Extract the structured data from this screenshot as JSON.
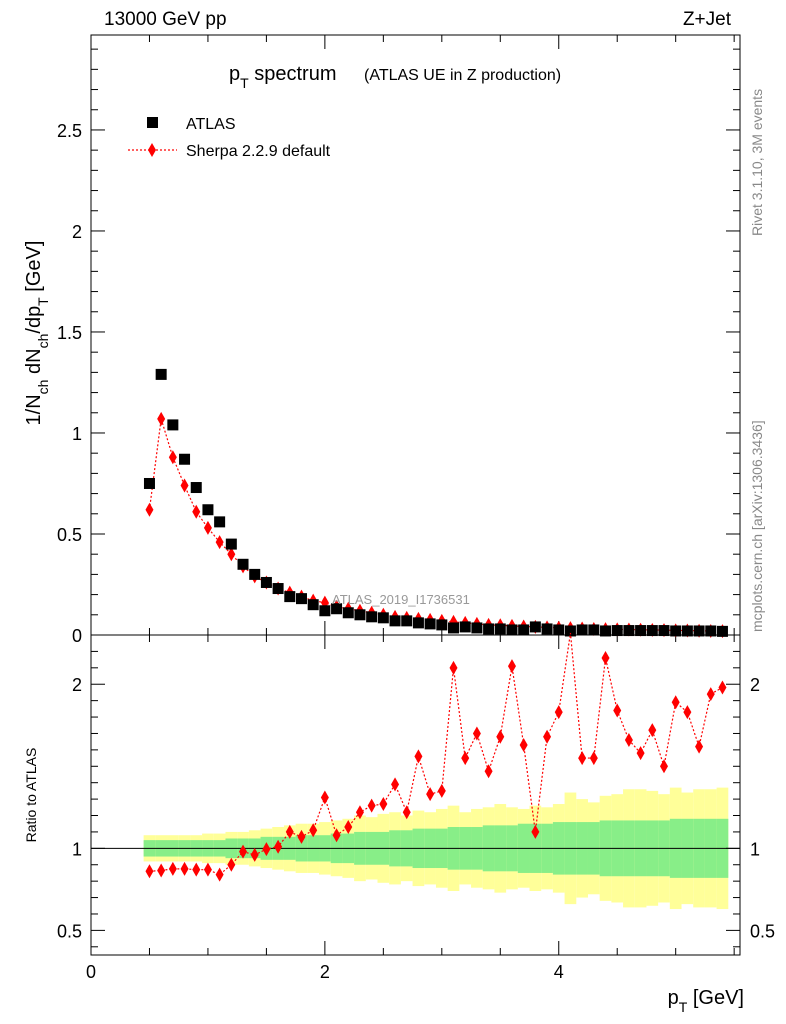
{
  "header": {
    "energy_label": "13000 GeV pp",
    "process_label": "Z+Jet"
  },
  "side_labels": {
    "rivet": "Rivet 3.1.10,  3M events",
    "mcplots": "mcplots.cern.ch [arXiv:1306.3436]"
  },
  "colors": {
    "atlas": "#000000",
    "sherpa": "#ff0000",
    "band_inner": "#88ee88",
    "band_outer": "#ffff99"
  },
  "chart_data": {
    "type": "scatter",
    "title": "p_T spectrum",
    "subtitle": "(ATLAS UE in Z production)",
    "watermark": "ATLAS_2019_I1736531",
    "xlabel": "p_T [GeV]",
    "ylabel": "1/N_ch dN_ch/dp_T [GeV]",
    "ratio_ylabel": "Ratio to ATLAS",
    "xlim": [
      0,
      5.55
    ],
    "ylim": [
      0,
      2.97
    ],
    "ratio_ylim": [
      0.35,
      2.3
    ],
    "grid": false,
    "legend_position": "top-left",
    "x_ticks": [
      0,
      2,
      4
    ],
    "y_ticks": [
      0.5,
      1,
      1.5,
      2,
      2.5
    ],
    "ratio_ticks": [
      0.5,
      1,
      2
    ],
    "x": [
      0.5,
      0.6,
      0.7,
      0.8,
      0.9,
      1.0,
      1.1,
      1.2,
      1.3,
      1.4,
      1.5,
      1.6,
      1.7,
      1.8,
      1.9,
      2.0,
      2.1,
      2.2,
      2.3,
      2.4,
      2.5,
      2.6,
      2.7,
      2.8,
      2.9,
      3.0,
      3.1,
      3.2,
      3.3,
      3.4,
      3.5,
      3.6,
      3.7,
      3.8,
      3.9,
      4.0,
      4.1,
      4.2,
      4.3,
      4.4,
      4.5,
      4.6,
      4.7,
      4.8,
      4.9,
      5.0,
      5.1,
      5.2,
      5.3,
      5.4
    ],
    "series": [
      {
        "name": "ATLAS",
        "values": [
          0.75,
          1.29,
          1.04,
          0.87,
          0.73,
          0.62,
          0.56,
          0.45,
          0.35,
          0.3,
          0.26,
          0.23,
          0.19,
          0.18,
          0.15,
          0.12,
          0.13,
          0.11,
          0.1,
          0.09,
          0.085,
          0.07,
          0.07,
          0.06,
          0.055,
          0.05,
          0.035,
          0.04,
          0.035,
          0.03,
          0.03,
          0.025,
          0.025,
          0.04,
          0.03,
          0.025,
          0.02,
          0.025,
          0.025,
          0.02,
          0.022,
          0.022,
          0.022,
          0.022,
          0.022,
          0.02,
          0.02,
          0.02,
          0.02,
          0.018
        ]
      },
      {
        "name": "Sherpa 2.2.9 default",
        "values": [
          0.62,
          1.07,
          0.88,
          0.74,
          0.61,
          0.53,
          0.46,
          0.4,
          0.34,
          0.29,
          0.26,
          0.23,
          0.21,
          0.19,
          0.17,
          0.16,
          0.14,
          0.13,
          0.12,
          0.11,
          0.1,
          0.09,
          0.085,
          0.08,
          0.075,
          0.07,
          0.065,
          0.06,
          0.055,
          0.05,
          0.048,
          0.045,
          0.042,
          0.04,
          0.038,
          0.036,
          0.034,
          0.032,
          0.03,
          0.029,
          0.028,
          0.027,
          0.026,
          0.025,
          0.024,
          0.023,
          0.022,
          0.021,
          0.02,
          0.019
        ]
      }
    ],
    "ratio": {
      "name": "Sherpa 2.2.9 default",
      "values": [
        0.86,
        0.865,
        0.875,
        0.875,
        0.87,
        0.87,
        0.84,
        0.9,
        0.98,
        0.96,
        0.995,
        1.01,
        1.1,
        1.07,
        1.11,
        1.31,
        1.08,
        1.13,
        1.22,
        1.26,
        1.27,
        1.39,
        1.22,
        1.56,
        1.33,
        1.35,
        2.1,
        1.55,
        1.7,
        1.47,
        1.68,
        2.11,
        1.63,
        1.1,
        1.68,
        1.83,
        2.55,
        1.55,
        1.55,
        2.16,
        1.84,
        1.66,
        1.58,
        1.72,
        1.5,
        1.89,
        1.83,
        1.62,
        1.94,
        1.98
      ],
      "band_inner": [
        0.05,
        0.05,
        0.05,
        0.05,
        0.05,
        0.05,
        0.05,
        0.06,
        0.06,
        0.06,
        0.07,
        0.07,
        0.07,
        0.08,
        0.08,
        0.08,
        0.09,
        0.09,
        0.1,
        0.1,
        0.1,
        0.11,
        0.11,
        0.12,
        0.12,
        0.12,
        0.13,
        0.13,
        0.13,
        0.14,
        0.14,
        0.14,
        0.15,
        0.15,
        0.15,
        0.16,
        0.16,
        0.16,
        0.16,
        0.17,
        0.17,
        0.17,
        0.17,
        0.17,
        0.17,
        0.18,
        0.18,
        0.18,
        0.18,
        0.18
      ],
      "band_outer": [
        0.08,
        0.08,
        0.08,
        0.08,
        0.08,
        0.09,
        0.09,
        0.1,
        0.1,
        0.11,
        0.12,
        0.13,
        0.14,
        0.15,
        0.15,
        0.16,
        0.17,
        0.18,
        0.2,
        0.19,
        0.21,
        0.22,
        0.2,
        0.23,
        0.22,
        0.24,
        0.26,
        0.22,
        0.24,
        0.25,
        0.27,
        0.25,
        0.24,
        0.26,
        0.25,
        0.27,
        0.34,
        0.3,
        0.28,
        0.32,
        0.33,
        0.36,
        0.36,
        0.35,
        0.33,
        0.37,
        0.34,
        0.36,
        0.36,
        0.37
      ]
    }
  }
}
